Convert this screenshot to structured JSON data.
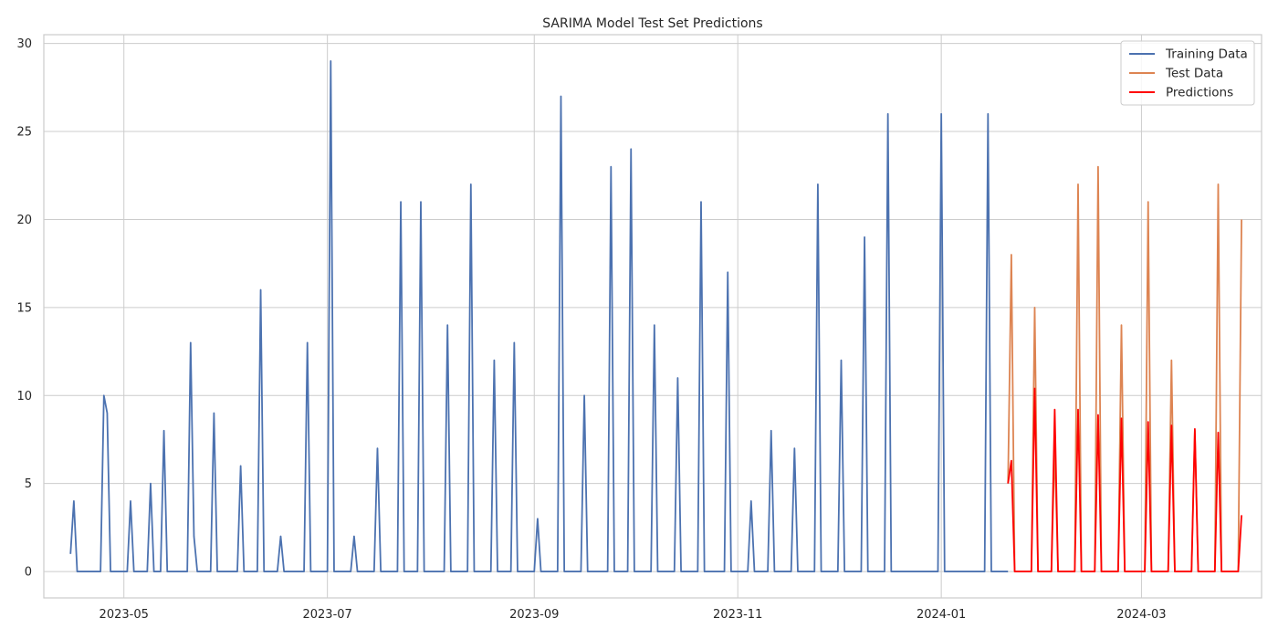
{
  "chart_data": {
    "type": "line",
    "title": "SARIMA Model Test Set Predictions",
    "xlabel": "",
    "ylabel": "",
    "x_type": "date",
    "xlim": [
      "2023-04-07",
      "2024-04-06"
    ],
    "ylim": [
      -1.5,
      30.5
    ],
    "grid": true,
    "legend_position": "top-right",
    "x_ticks": [
      "2023-05-01",
      "2023-07-01",
      "2023-09-01",
      "2023-11-01",
      "2024-01-01",
      "2024-03-01"
    ],
    "x_tick_labels": [
      "2023-05",
      "2023-07",
      "2023-09",
      "2023-11",
      "2024-01",
      "2024-03"
    ],
    "y_ticks": [
      0,
      5,
      10,
      15,
      20,
      25,
      30
    ],
    "y_tick_labels": [
      "0",
      "5",
      "10",
      "15",
      "20",
      "25",
      "30"
    ],
    "series": [
      {
        "name": "Training Data",
        "color": "#4c72b0",
        "points": [
          [
            "2023-04-15",
            1
          ],
          [
            "2023-04-16",
            4
          ],
          [
            "2023-04-17",
            0
          ],
          [
            "2023-04-24",
            0
          ],
          [
            "2023-04-25",
            10
          ],
          [
            "2023-04-26",
            9
          ],
          [
            "2023-04-27",
            0
          ],
          [
            "2023-05-02",
            0
          ],
          [
            "2023-05-03",
            4
          ],
          [
            "2023-05-04",
            0
          ],
          [
            "2023-05-08",
            0
          ],
          [
            "2023-05-09",
            5
          ],
          [
            "2023-05-10",
            0
          ],
          [
            "2023-05-12",
            0
          ],
          [
            "2023-05-13",
            8
          ],
          [
            "2023-05-14",
            0
          ],
          [
            "2023-05-20",
            0
          ],
          [
            "2023-05-21",
            13
          ],
          [
            "2023-05-22",
            2
          ],
          [
            "2023-05-23",
            0
          ],
          [
            "2023-05-27",
            0
          ],
          [
            "2023-05-28",
            9
          ],
          [
            "2023-05-29",
            0
          ],
          [
            "2023-06-04",
            0
          ],
          [
            "2023-06-05",
            6
          ],
          [
            "2023-06-06",
            0
          ],
          [
            "2023-06-10",
            0
          ],
          [
            "2023-06-11",
            16
          ],
          [
            "2023-06-12",
            0
          ],
          [
            "2023-06-16",
            0
          ],
          [
            "2023-06-17",
            2
          ],
          [
            "2023-06-18",
            0
          ],
          [
            "2023-06-24",
            0
          ],
          [
            "2023-06-25",
            13
          ],
          [
            "2023-06-26",
            0
          ],
          [
            "2023-07-01",
            0
          ],
          [
            "2023-07-02",
            29
          ],
          [
            "2023-07-03",
            0
          ],
          [
            "2023-07-08",
            0
          ],
          [
            "2023-07-09",
            2
          ],
          [
            "2023-07-10",
            0
          ],
          [
            "2023-07-15",
            0
          ],
          [
            "2023-07-16",
            7
          ],
          [
            "2023-07-17",
            0
          ],
          [
            "2023-07-22",
            0
          ],
          [
            "2023-07-23",
            21
          ],
          [
            "2023-07-24",
            0
          ],
          [
            "2023-07-28",
            0
          ],
          [
            "2023-07-29",
            21
          ],
          [
            "2023-07-30",
            0
          ],
          [
            "2023-08-05",
            0
          ],
          [
            "2023-08-06",
            14
          ],
          [
            "2023-08-07",
            0
          ],
          [
            "2023-08-12",
            0
          ],
          [
            "2023-08-13",
            22
          ],
          [
            "2023-08-14",
            0
          ],
          [
            "2023-08-19",
            0
          ],
          [
            "2023-08-20",
            12
          ],
          [
            "2023-08-21",
            0
          ],
          [
            "2023-08-25",
            0
          ],
          [
            "2023-08-26",
            13
          ],
          [
            "2023-08-27",
            0
          ],
          [
            "2023-09-01",
            0
          ],
          [
            "2023-09-02",
            3
          ],
          [
            "2023-09-03",
            0
          ],
          [
            "2023-09-08",
            0
          ],
          [
            "2023-09-09",
            27
          ],
          [
            "2023-09-10",
            0
          ],
          [
            "2023-09-15",
            0
          ],
          [
            "2023-09-16",
            10
          ],
          [
            "2023-09-17",
            0
          ],
          [
            "2023-09-23",
            0
          ],
          [
            "2023-09-24",
            23
          ],
          [
            "2023-09-25",
            0
          ],
          [
            "2023-09-29",
            0
          ],
          [
            "2023-09-30",
            24
          ],
          [
            "2023-10-01",
            0
          ],
          [
            "2023-10-06",
            0
          ],
          [
            "2023-10-07",
            14
          ],
          [
            "2023-10-08",
            0
          ],
          [
            "2023-10-13",
            0
          ],
          [
            "2023-10-14",
            11
          ],
          [
            "2023-10-15",
            0
          ],
          [
            "2023-10-20",
            0
          ],
          [
            "2023-10-21",
            21
          ],
          [
            "2023-10-22",
            0
          ],
          [
            "2023-10-28",
            0
          ],
          [
            "2023-10-29",
            17
          ],
          [
            "2023-10-30",
            0
          ],
          [
            "2023-11-04",
            0
          ],
          [
            "2023-11-05",
            4
          ],
          [
            "2023-11-06",
            0
          ],
          [
            "2023-11-10",
            0
          ],
          [
            "2023-11-11",
            8
          ],
          [
            "2023-11-12",
            0
          ],
          [
            "2023-11-17",
            0
          ],
          [
            "2023-11-18",
            7
          ],
          [
            "2023-11-19",
            0
          ],
          [
            "2023-11-24",
            0
          ],
          [
            "2023-11-25",
            22
          ],
          [
            "2023-11-26",
            0
          ],
          [
            "2023-12-01",
            0
          ],
          [
            "2023-12-02",
            12
          ],
          [
            "2023-12-03",
            0
          ],
          [
            "2023-12-08",
            0
          ],
          [
            "2023-12-09",
            19
          ],
          [
            "2023-12-10",
            0
          ],
          [
            "2023-12-15",
            0
          ],
          [
            "2023-12-16",
            26
          ],
          [
            "2023-12-17",
            0
          ],
          [
            "2023-12-31",
            0
          ],
          [
            "2024-01-01",
            26
          ],
          [
            "2024-01-02",
            0
          ],
          [
            "2024-01-14",
            0
          ],
          [
            "2024-01-15",
            26
          ],
          [
            "2024-01-16",
            0
          ],
          [
            "2024-01-21",
            0
          ]
        ]
      },
      {
        "name": "Test Data",
        "color": "#dd8452",
        "points": [
          [
            "2024-01-21",
            5
          ],
          [
            "2024-01-22",
            18
          ],
          [
            "2024-01-23",
            0
          ],
          [
            "2024-01-28",
            0
          ],
          [
            "2024-01-29",
            15
          ],
          [
            "2024-01-30",
            0
          ],
          [
            "2024-02-03",
            0
          ],
          [
            "2024-02-04",
            7
          ],
          [
            "2024-02-05",
            0
          ],
          [
            "2024-02-10",
            0
          ],
          [
            "2024-02-11",
            22
          ],
          [
            "2024-02-12",
            0
          ],
          [
            "2024-02-16",
            0
          ],
          [
            "2024-02-17",
            23
          ],
          [
            "2024-02-18",
            0
          ],
          [
            "2024-02-23",
            0
          ],
          [
            "2024-02-24",
            14
          ],
          [
            "2024-02-25",
            0
          ],
          [
            "2024-03-02",
            0
          ],
          [
            "2024-03-03",
            21
          ],
          [
            "2024-03-04",
            0
          ],
          [
            "2024-03-09",
            0
          ],
          [
            "2024-03-10",
            12
          ],
          [
            "2024-03-11",
            0
          ],
          [
            "2024-03-16",
            0
          ],
          [
            "2024-03-17",
            8
          ],
          [
            "2024-03-18",
            0
          ],
          [
            "2024-03-23",
            0
          ],
          [
            "2024-03-24",
            22
          ],
          [
            "2024-03-25",
            0
          ],
          [
            "2024-03-30",
            0
          ],
          [
            "2024-03-31",
            20
          ]
        ]
      },
      {
        "name": "Predictions",
        "color": "#ff0000",
        "points": [
          [
            "2024-01-21",
            5
          ],
          [
            "2024-01-22",
            6.3
          ],
          [
            "2024-01-23",
            0
          ],
          [
            "2024-01-28",
            0
          ],
          [
            "2024-01-29",
            10.4
          ],
          [
            "2024-01-30",
            0
          ],
          [
            "2024-02-03",
            0
          ],
          [
            "2024-02-04",
            9.2
          ],
          [
            "2024-02-05",
            0
          ],
          [
            "2024-02-10",
            0
          ],
          [
            "2024-02-11",
            9.2
          ],
          [
            "2024-02-12",
            0
          ],
          [
            "2024-02-16",
            0
          ],
          [
            "2024-02-17",
            8.9
          ],
          [
            "2024-02-18",
            0
          ],
          [
            "2024-02-23",
            0
          ],
          [
            "2024-02-24",
            8.7
          ],
          [
            "2024-02-25",
            0
          ],
          [
            "2024-03-02",
            0
          ],
          [
            "2024-03-03",
            8.5
          ],
          [
            "2024-03-04",
            0
          ],
          [
            "2024-03-09",
            0
          ],
          [
            "2024-03-10",
            8.3
          ],
          [
            "2024-03-11",
            0
          ],
          [
            "2024-03-16",
            0
          ],
          [
            "2024-03-17",
            8.1
          ],
          [
            "2024-03-18",
            0
          ],
          [
            "2024-03-23",
            0
          ],
          [
            "2024-03-24",
            7.9
          ],
          [
            "2024-03-25",
            0
          ],
          [
            "2024-03-30",
            0
          ],
          [
            "2024-03-31",
            3.2
          ]
        ]
      }
    ]
  }
}
